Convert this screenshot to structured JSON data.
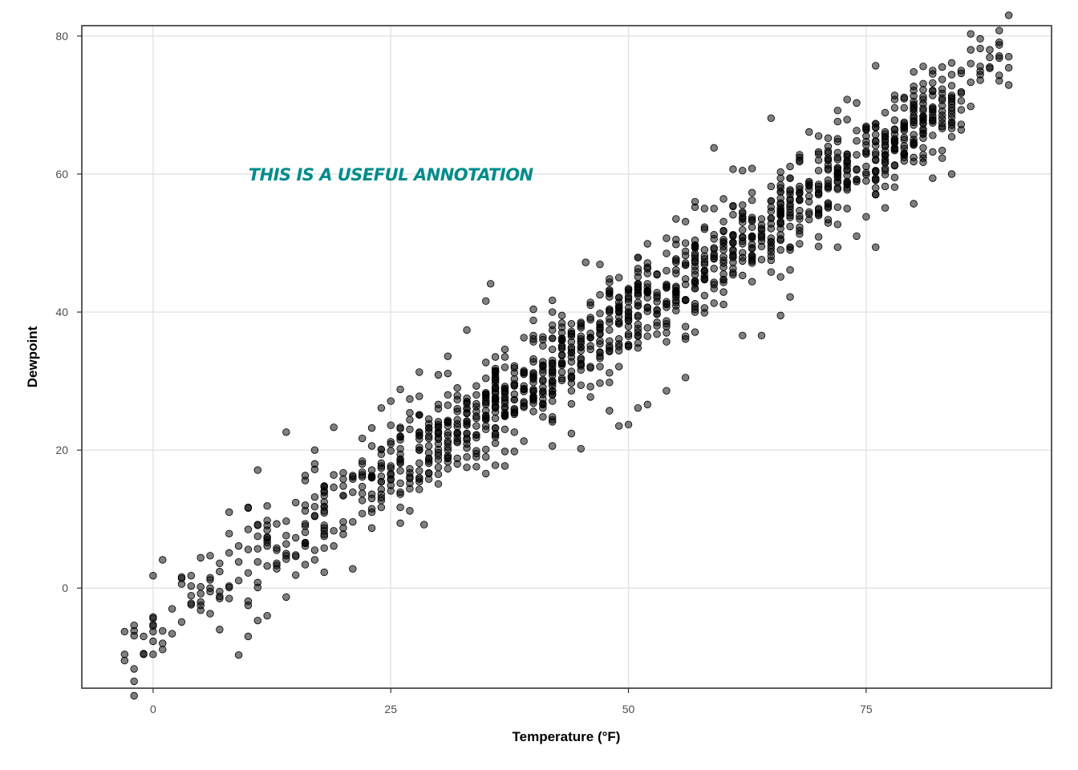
{
  "chart_data": {
    "type": "scatter",
    "title": "",
    "xlabel": "Temperature (°F)",
    "ylabel": "Dewpoint",
    "xlim": [
      -7.5,
      94.5
    ],
    "ylim": [
      -14.5,
      81.5
    ],
    "xticks": [
      0,
      25,
      50,
      75
    ],
    "yticks": [
      0,
      20,
      40,
      60,
      80
    ],
    "grid": true,
    "legend": "none",
    "point_color": "#000000",
    "point_alpha": 0.5,
    "annotation": {
      "text": "This is a useful annotation",
      "x": 25,
      "y": 60,
      "color": "#008b8b"
    },
    "trend": {
      "slope": 0.9,
      "intercept": -5.5,
      "spread": 3.6
    },
    "x_min": -3,
    "x_max": 90,
    "n_points": 1400,
    "points": [
      [
        -3,
        -10.5
      ],
      [
        -2,
        -6.9
      ],
      [
        -1,
        -7.0
      ],
      [
        0,
        -4.2
      ],
      [
        1,
        -6.2
      ],
      [
        1,
        -8.9
      ],
      [
        2,
        -6.6
      ],
      [
        3,
        1.6
      ],
      [
        4,
        0.3
      ],
      [
        4,
        -1.1
      ],
      [
        5,
        -3.2
      ],
      [
        5,
        0.2
      ],
      [
        6,
        4.7
      ],
      [
        6,
        -0.5
      ],
      [
        7,
        -1.5
      ],
      [
        7,
        -6.0
      ],
      [
        8,
        11.0
      ],
      [
        8,
        7.9
      ],
      [
        8,
        5.1
      ],
      [
        8,
        -1.5
      ],
      [
        9,
        -9.7
      ],
      [
        10,
        11.6
      ],
      [
        10,
        -1.9
      ],
      [
        11,
        17.1
      ],
      [
        11,
        9.2
      ],
      [
        12,
        9.8
      ],
      [
        13,
        5.8
      ],
      [
        14,
        22.6
      ],
      [
        14,
        4.7
      ],
      [
        14,
        -1.3
      ],
      [
        16,
        16.3
      ],
      [
        17,
        17.2
      ],
      [
        18,
        12.5
      ],
      [
        18,
        2.3
      ],
      [
        19,
        23.3
      ],
      [
        19,
        8.3
      ],
      [
        21,
        2.8
      ],
      [
        21,
        16.3
      ],
      [
        22,
        21.7
      ],
      [
        23,
        11.0
      ],
      [
        25,
        27.1
      ],
      [
        26,
        9.4
      ],
      [
        26,
        28.8
      ],
      [
        27,
        11.2
      ],
      [
        28,
        31.3
      ],
      [
        28.5,
        9.2
      ],
      [
        30,
        19.2
      ],
      [
        31,
        33.6
      ],
      [
        33,
        37.4
      ],
      [
        35,
        41.6
      ],
      [
        35.5,
        44.1
      ],
      [
        36,
        17.8
      ],
      [
        37,
        17.7
      ],
      [
        39,
        21.3
      ],
      [
        40,
        40.4
      ],
      [
        42,
        20.6
      ],
      [
        44,
        22.4
      ],
      [
        45,
        20.2
      ],
      [
        45.5,
        47.2
      ],
      [
        47,
        46.9
      ],
      [
        48,
        25.7
      ],
      [
        49,
        23.5
      ],
      [
        50,
        23.7
      ],
      [
        51,
        26.1
      ],
      [
        52,
        26.6
      ],
      [
        54,
        28.6
      ],
      [
        55,
        53.5
      ],
      [
        56,
        30.5
      ],
      [
        57,
        56.0
      ],
      [
        59,
        63.8
      ],
      [
        60,
        56.4
      ],
      [
        62,
        36.6
      ],
      [
        64,
        36.6
      ],
      [
        65,
        68.1
      ],
      [
        66,
        39.5
      ],
      [
        67,
        42.2
      ],
      [
        68,
        62.0
      ],
      [
        72,
        49.4
      ],
      [
        74,
        51.0
      ],
      [
        75,
        53.8
      ],
      [
        76,
        49.4
      ],
      [
        76,
        75.7
      ],
      [
        77,
        55.1
      ],
      [
        78,
        59.5
      ],
      [
        80,
        55.7
      ],
      [
        82,
        59.4
      ],
      [
        83,
        62.3
      ],
      [
        83,
        66.6
      ],
      [
        84,
        60.0
      ],
      [
        84,
        76.1
      ],
      [
        85,
        70.6
      ],
      [
        86,
        73.3
      ],
      [
        87,
        74.4
      ],
      [
        90,
        77.0
      ]
    ]
  }
}
